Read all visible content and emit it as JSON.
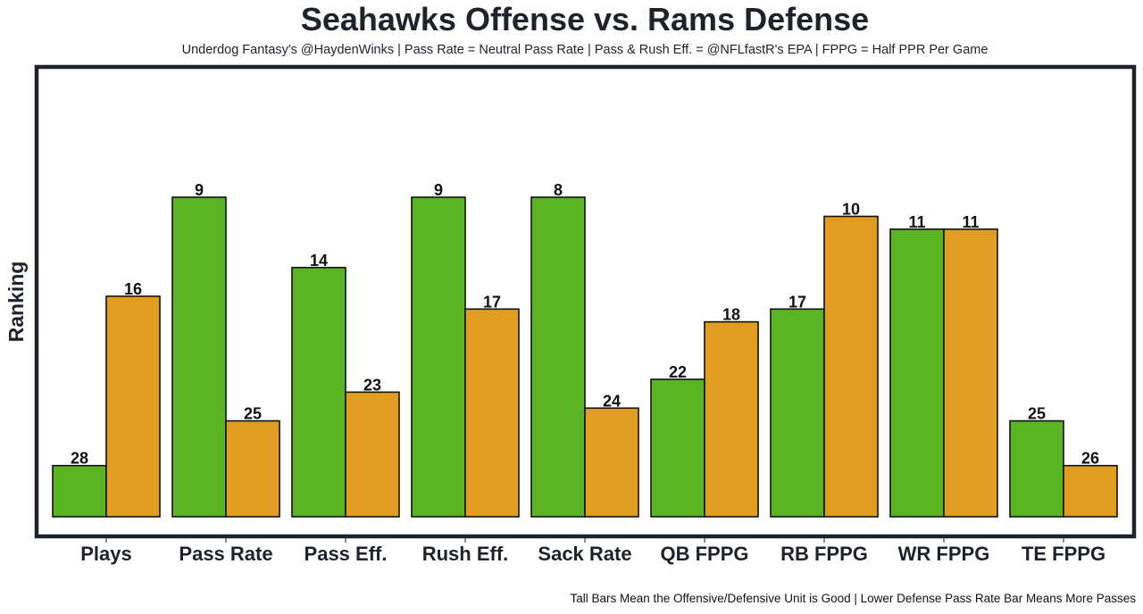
{
  "chart_data": {
    "type": "bar",
    "title": "Seahawks Offense vs. Rams Defense",
    "subtitle": "Underdog Fantasy's @HaydenWinks | Pass Rate = Neutral Pass Rate | Pass & Rush Eff. = @NFLfastR's EPA | FPPG = Half PPR Per Game",
    "footnote": "Tall Bars Mean the Offensive/Defensive Unit is Good | Lower Defense Pass Rate Bar Means More Passes",
    "xlabel": "",
    "ylabel": "Ranking",
    "ylim": [
      0,
      1
    ],
    "grid": false,
    "legend": "none",
    "categories": [
      "Plays",
      "Pass Rate",
      "Pass Eff.",
      "Rush Eff.",
      "Sack Rate",
      "QB FPPG",
      "RB FPPG",
      "WR FPPG",
      "TE FPPG"
    ],
    "series": [
      {
        "name": "Seahawks Offense",
        "color": "#5ab424",
        "rank_labels": [
          28,
          9,
          14,
          9,
          8,
          22,
          17,
          11,
          25
        ],
        "relative_heights": [
          0.16,
          1.0,
          0.78,
          1.0,
          1.0,
          0.43,
          0.65,
          0.9,
          0.3
        ]
      },
      {
        "name": "Rams Defense",
        "color": "#e09d22",
        "rank_labels": [
          16,
          25,
          23,
          17,
          24,
          18,
          10,
          11,
          26
        ],
        "relative_heights": [
          0.69,
          0.3,
          0.39,
          0.65,
          0.34,
          0.61,
          0.94,
          0.9,
          0.16
        ]
      }
    ]
  },
  "colors": {
    "frame": "#1e222b",
    "bar_outline": "#111111",
    "text": "#1e222b"
  }
}
